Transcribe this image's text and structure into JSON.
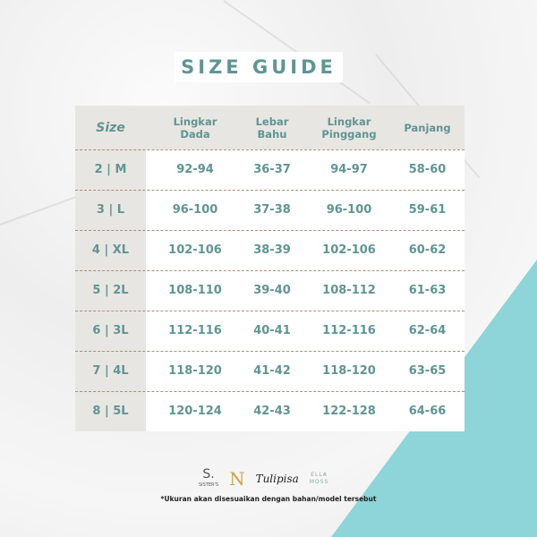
{
  "title": "SIZE GUIDE",
  "headers": [
    [
      "Size",
      ""
    ],
    [
      "Lingkar",
      "Dada"
    ],
    [
      "Lebar",
      "Bahu"
    ],
    [
      "Lingkar",
      "Pinggang"
    ],
    [
      "Panjang",
      ""
    ]
  ],
  "rows": [
    [
      "2 | M",
      "92-94",
      "36-37",
      "94-97",
      "58-60"
    ],
    [
      "3 | L",
      "96-100",
      "37-38",
      "96-100",
      "59-61"
    ],
    [
      "4 | XL",
      "102-106",
      "38-39",
      "102-106",
      "60-62"
    ],
    [
      "5 | 2L",
      "108-110",
      "39-40",
      "108-112",
      "61-63"
    ],
    [
      "6 | 3L",
      "112-116",
      "40-41",
      "112-116",
      "62-64"
    ],
    [
      "7 | 4L",
      "118-120",
      "41-42",
      "118-120",
      "63-65"
    ],
    [
      "8 | 5L",
      "120-124",
      "42-43",
      "122-128",
      "64-66"
    ]
  ],
  "brands": {
    "sisters_mark": "S.",
    "sisters": "SISTER'S",
    "n_mark": "N",
    "tulipisa": "Tulipisa",
    "ella": "ELLA",
    "moss": "MOSS"
  },
  "note": "*Ukuran akan disesuaikan dengan bahan/model tersebut",
  "colors": {
    "accent": "#5f9593",
    "triangle": "#8dd5d9",
    "header_bg": "#e8e6e2"
  }
}
